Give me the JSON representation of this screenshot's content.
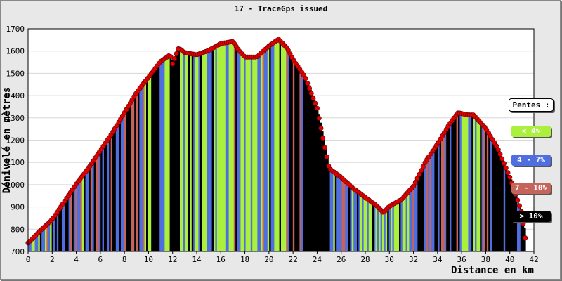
{
  "title": "17 - TraceGps issued",
  "legend": {
    "title": "Pentes :",
    "items": [
      {
        "label": "< 4%",
        "color": "#aaf03c"
      },
      {
        "label": "4 - 7%",
        "color": "#4f6fe0"
      },
      {
        "label": "7 - 10%",
        "color": "#c4645a"
      },
      {
        "label": "> 10%",
        "color": "#000000"
      }
    ]
  },
  "chart_data": {
    "type": "area",
    "xlabel": "Distance en km",
    "ylabel": "Dénivelé en mètres",
    "xlim": [
      0,
      42
    ],
    "ylim": [
      700,
      1700
    ],
    "xticks": [
      0,
      2,
      4,
      6,
      8,
      10,
      12,
      14,
      16,
      18,
      20,
      22,
      24,
      26,
      28,
      30,
      32,
      34,
      36,
      38,
      40,
      42
    ],
    "yticks": [
      700,
      800,
      900,
      1000,
      1100,
      1200,
      1300,
      1400,
      1500,
      1600,
      1700
    ],
    "grid": true,
    "marker_color": "#e00000",
    "profile": {
      "x": [
        0,
        1,
        2,
        3,
        4,
        5,
        6,
        7,
        8,
        9,
        10,
        11,
        11.8,
        12,
        12.5,
        13,
        14,
        15,
        16,
        17,
        17.5,
        18,
        19,
        20,
        20.8,
        21.5,
        22,
        23,
        24,
        24.5,
        25,
        26,
        27,
        28,
        29,
        29.5,
        30,
        31,
        32,
        33,
        34,
        35,
        35.7,
        36.5,
        37,
        38,
        39,
        40,
        41,
        41.3
      ],
      "y": [
        735,
        790,
        840,
        920,
        1000,
        1070,
        1150,
        1230,
        1320,
        1410,
        1480,
        1550,
        1580,
        1540,
        1610,
        1590,
        1580,
        1600,
        1630,
        1640,
        1600,
        1570,
        1570,
        1620,
        1650,
        1610,
        1560,
        1480,
        1340,
        1200,
        1070,
        1030,
        980,
        940,
        900,
        870,
        900,
        930,
        990,
        1100,
        1180,
        1270,
        1320,
        1310,
        1310,
        1250,
        1160,
        1030,
        870,
        750
      ]
    },
    "slope_classes": [
      "< 4%",
      "4 - 7%",
      "7 - 10%",
      "> 10%"
    ]
  }
}
